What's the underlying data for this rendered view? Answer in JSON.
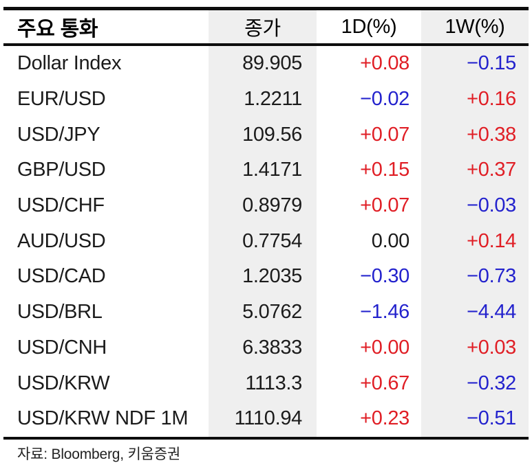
{
  "colors": {
    "up_red": "#e01e25",
    "down_blue": "#2322cd",
    "text": "#1b1b1b",
    "column_shade": "#efefef",
    "rule_black": "#0d0d0d"
  },
  "table": {
    "columns": [
      "주요 통화",
      "종가",
      "1D(%)",
      "1W(%)"
    ],
    "rows": [
      {
        "name": "Dollar Index",
        "close": "89.905",
        "change_1d": {
          "text": "+0.08",
          "direction": "up"
        },
        "change_1w": {
          "text": "−0.15",
          "direction": "down"
        }
      },
      {
        "name": "EUR/USD",
        "close": "1.2211",
        "change_1d": {
          "text": "−0.02",
          "direction": "down"
        },
        "change_1w": {
          "text": "+0.16",
          "direction": "up"
        }
      },
      {
        "name": "USD/JPY",
        "close": "109.56",
        "change_1d": {
          "text": "+0.07",
          "direction": "up"
        },
        "change_1w": {
          "text": "+0.38",
          "direction": "up"
        }
      },
      {
        "name": "GBP/USD",
        "close": "1.4171",
        "change_1d": {
          "text": "+0.15",
          "direction": "up"
        },
        "change_1w": {
          "text": "+0.37",
          "direction": "up"
        }
      },
      {
        "name": "USD/CHF",
        "close": "0.8979",
        "change_1d": {
          "text": "+0.07",
          "direction": "up"
        },
        "change_1w": {
          "text": "−0.03",
          "direction": "down"
        }
      },
      {
        "name": "AUD/USD",
        "close": "0.7754",
        "change_1d": {
          "text": "0.00",
          "direction": "flat"
        },
        "change_1w": {
          "text": "+0.14",
          "direction": "up"
        }
      },
      {
        "name": "USD/CAD",
        "close": "1.2035",
        "change_1d": {
          "text": "−0.30",
          "direction": "down"
        },
        "change_1w": {
          "text": "−0.73",
          "direction": "down"
        }
      },
      {
        "name": "USD/BRL",
        "close": "5.0762",
        "change_1d": {
          "text": "−1.46",
          "direction": "down"
        },
        "change_1w": {
          "text": "−4.44",
          "direction": "down"
        }
      },
      {
        "name": "USD/CNH",
        "close": "6.3833",
        "change_1d": {
          "text": "+0.00",
          "direction": "up"
        },
        "change_1w": {
          "text": "+0.03",
          "direction": "up"
        }
      },
      {
        "name": "USD/KRW",
        "close": "1113.3",
        "change_1d": {
          "text": "+0.67",
          "direction": "up"
        },
        "change_1w": {
          "text": "−0.32",
          "direction": "down"
        }
      },
      {
        "name": "USD/KRW NDF 1M",
        "close": "1110.94",
        "change_1d": {
          "text": "+0.23",
          "direction": "up"
        },
        "change_1w": {
          "text": "−0.51",
          "direction": "down"
        }
      }
    ]
  },
  "footer": {
    "source": "자료: Bloomberg,  키움증권"
  },
  "chart_data": {
    "type": "table",
    "title": "주요 통화",
    "columns": [
      "주요 통화",
      "종가",
      "1D(%)",
      "1W(%)"
    ],
    "rows": [
      [
        "Dollar Index",
        89.905,
        0.08,
        -0.15
      ],
      [
        "EUR/USD",
        1.2211,
        -0.02,
        0.16
      ],
      [
        "USD/JPY",
        109.56,
        0.07,
        0.38
      ],
      [
        "GBP/USD",
        1.4171,
        0.15,
        0.37
      ],
      [
        "USD/CHF",
        0.8979,
        0.07,
        -0.03
      ],
      [
        "AUD/USD",
        0.7754,
        0.0,
        0.14
      ],
      [
        "USD/CAD",
        1.2035,
        -0.3,
        -0.73
      ],
      [
        "USD/BRL",
        5.0762,
        -1.46,
        -4.44
      ],
      [
        "USD/CNH",
        6.3833,
        0.0,
        0.03
      ],
      [
        "USD/KRW",
        1113.3,
        0.67,
        -0.32
      ],
      [
        "USD/KRW NDF 1M",
        1110.94,
        0.23,
        -0.51
      ]
    ],
    "source_note": "자료: Bloomberg, 키움증권"
  }
}
